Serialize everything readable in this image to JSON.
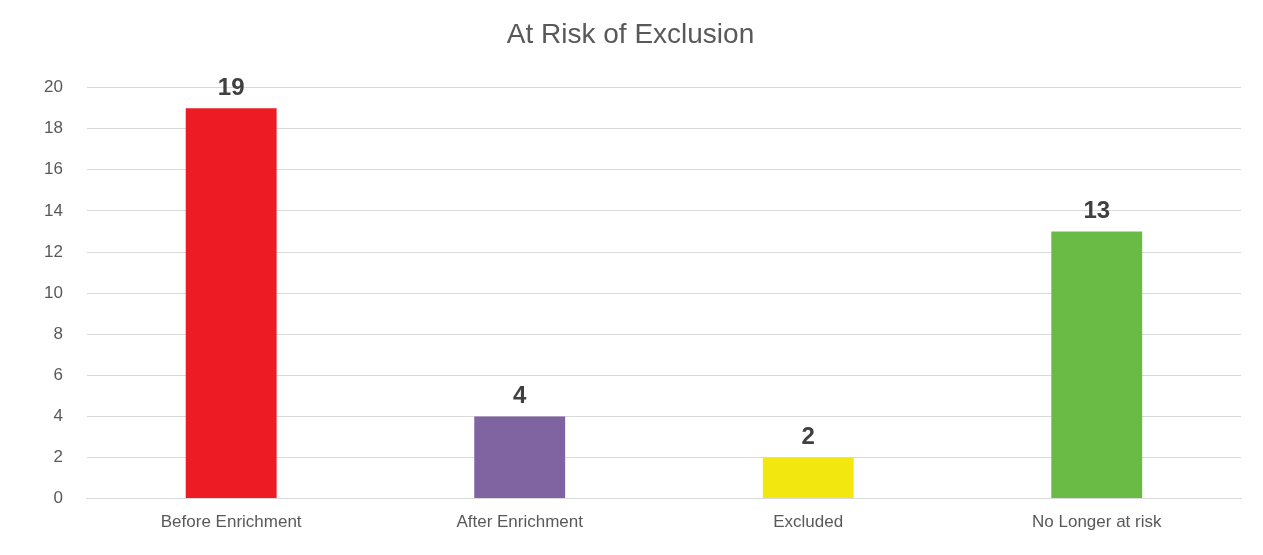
{
  "chart_data": {
    "type": "bar",
    "title": "At Risk of Exclusion",
    "categories": [
      "Before Enrichment",
      "After Enrichment",
      "Excluded",
      "No Longer at risk"
    ],
    "values": [
      19,
      4,
      2,
      13
    ],
    "colors": [
      "#ed1c24",
      "#8064a2",
      "#f2e70f",
      "#6abb45"
    ],
    "ylim": [
      0,
      20
    ],
    "yticks": [
      0,
      2,
      4,
      6,
      8,
      10,
      12,
      14,
      16,
      18,
      20
    ],
    "grid": "y",
    "legend": false,
    "data_labels": true
  }
}
